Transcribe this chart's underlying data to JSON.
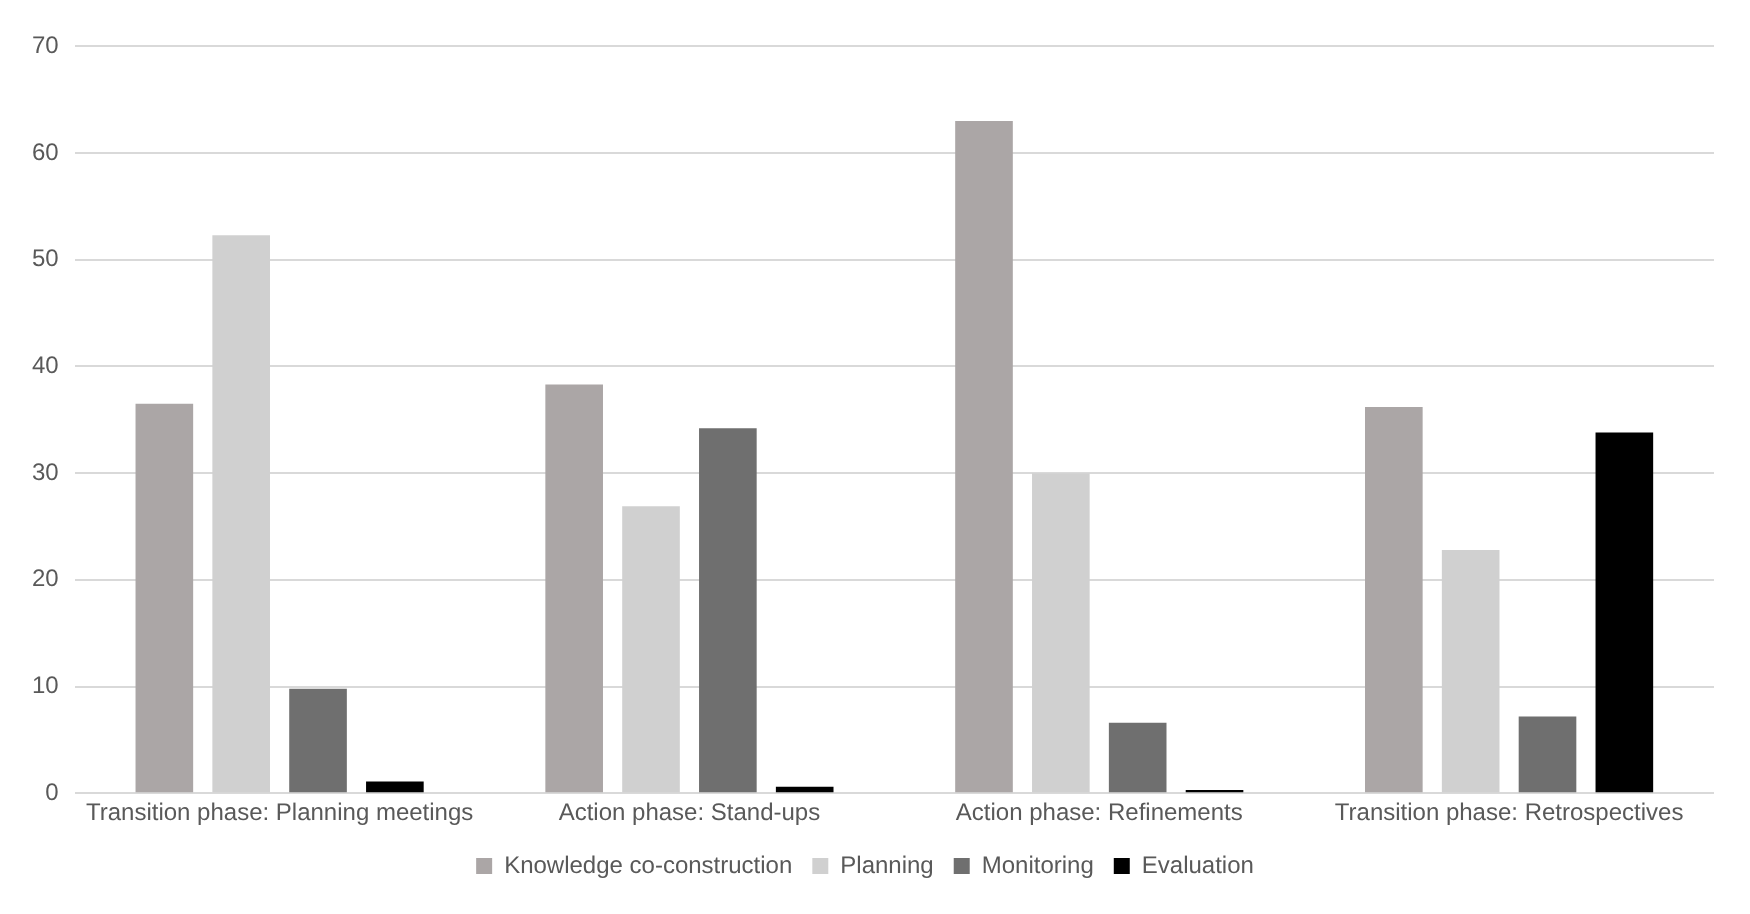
{
  "chart_data": {
    "type": "bar",
    "categories": [
      "Transition phase: Planning meetings",
      "Action phase: Stand-ups",
      "Action phase: Refinements",
      "Transition phase: Retrospectives"
    ],
    "series": [
      {
        "name": "Knowledge co-construction",
        "color": "#aba6a6",
        "values": [
          36.5,
          38.3,
          63,
          36.2
        ]
      },
      {
        "name": "Planning",
        "color": "#d0d0d0",
        "values": [
          52.3,
          26.9,
          30,
          22.8
        ]
      },
      {
        "name": "Monitoring",
        "color": "#6f6f6f",
        "values": [
          9.8,
          34.2,
          6.6,
          7.2
        ]
      },
      {
        "name": "Evaluation",
        "color": "#000000",
        "values": [
          1.1,
          0.6,
          0.3,
          33.8
        ]
      }
    ],
    "ylim": [
      0,
      70
    ],
    "yticks": [
      0,
      10,
      20,
      30,
      40,
      50,
      60,
      70
    ],
    "grid": "y",
    "legend": "bottom"
  }
}
